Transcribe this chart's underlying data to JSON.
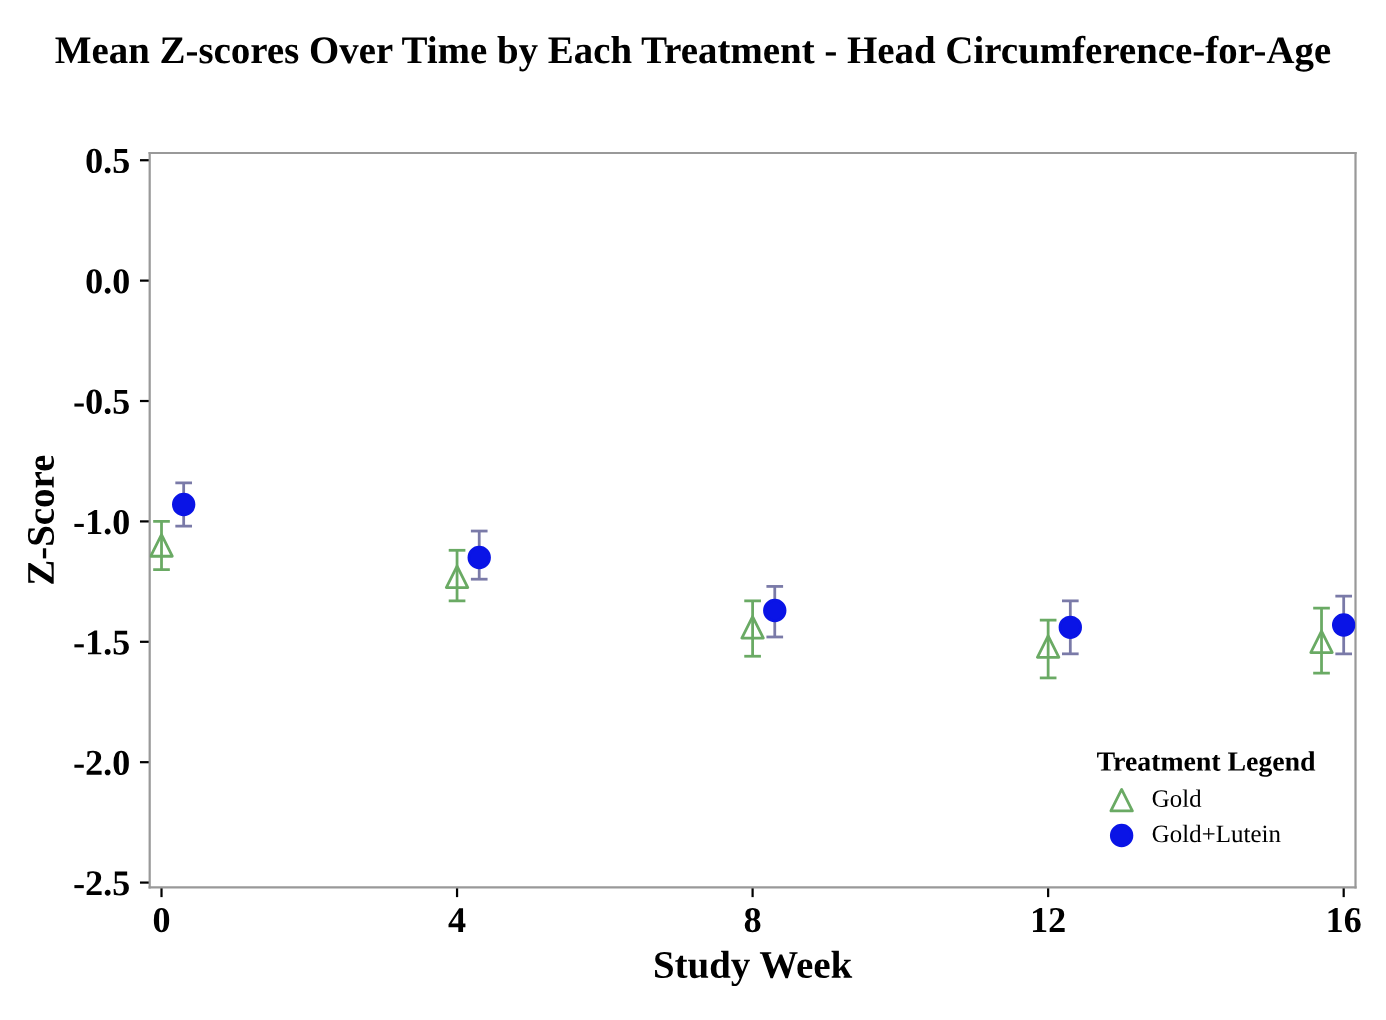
{
  "chart_data": {
    "type": "scatter",
    "title": "Mean Z-scores Over Time by Each Treatment - Head Circumference-for-Age",
    "xlabel": "Study Week",
    "ylabel": "Z-Score",
    "legend_title": "Treatment Legend",
    "legend": "bottom right",
    "grid": false,
    "xlim": [
      -0.16,
      16.16
    ],
    "xticks": [
      0,
      4,
      8,
      12,
      16
    ],
    "ylim": [
      -2.52,
      0.53
    ],
    "yticks": [
      {
        "value": 0.5,
        "label": "0.5"
      },
      {
        "value": 0.0,
        "label": "0.0"
      },
      {
        "value": -0.5,
        "label": "-0.5"
      },
      {
        "value": -1.0,
        "label": "-1.0"
      },
      {
        "value": -1.5,
        "label": "-1.5"
      },
      {
        "value": -2.0,
        "label": "-2.0"
      },
      {
        "value": -2.5,
        "label": "-2.5"
      }
    ],
    "series": [
      {
        "name": "Gold",
        "color": "#6aaa64",
        "marker": "triangle",
        "x": [
          0,
          4,
          8,
          12,
          15.7
        ],
        "values": [
          -1.1,
          -1.23,
          -1.44,
          -1.52,
          -1.5
        ],
        "errors": [
          [
            -1.2,
            -1.0
          ],
          [
            -1.33,
            -1.12
          ],
          [
            -1.56,
            -1.33
          ],
          [
            -1.65,
            -1.41
          ],
          [
            -1.63,
            -1.36
          ]
        ]
      },
      {
        "name": "Gold+Lutein",
        "color": "#0a14e6",
        "marker": "circle",
        "x": [
          0.3,
          4.3,
          8.3,
          12.3,
          16
        ],
        "values": [
          -0.93,
          -1.15,
          -1.37,
          -1.44,
          -1.43
        ],
        "errors": [
          [
            -1.02,
            -0.84
          ],
          [
            -1.24,
            -1.04
          ],
          [
            -1.48,
            -1.27
          ],
          [
            -1.55,
            -1.33
          ],
          [
            -1.55,
            -1.31
          ]
        ]
      }
    ]
  }
}
